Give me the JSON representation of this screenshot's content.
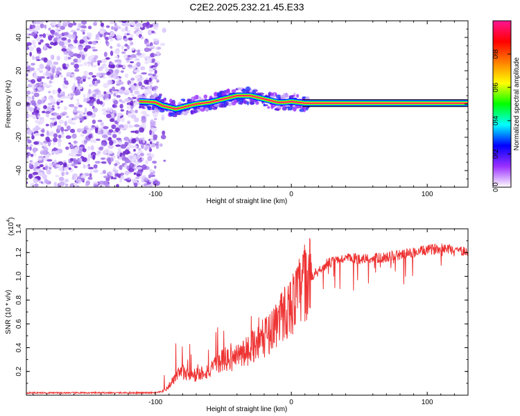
{
  "chart_data": [
    {
      "type": "heatmap",
      "title": "C2E2.2025.232.21.45.E33",
      "xlabel": "Height of straight line (km)",
      "ylabel": "Frequency (Hz)",
      "xlim": [
        -195,
        130
      ],
      "ylim": [
        -50,
        50
      ],
      "xticks": [
        -100,
        0,
        100
      ],
      "xtick_labels": [
        "-100",
        "0",
        "100"
      ],
      "yticks": [
        -40,
        -20,
        0,
        20,
        40
      ],
      "ytick_labels": [
        "-40",
        "-20",
        "0",
        "20",
        "40"
      ],
      "noise_region_x": [
        -195,
        -98
      ],
      "ridge": {
        "x": [
          -110,
          -100,
          -95,
          -90,
          -85,
          -80,
          -75,
          -70,
          -65,
          -60,
          -55,
          -50,
          -45,
          -40,
          -35,
          -30,
          -25,
          -20,
          -15,
          -10,
          -5,
          0,
          5,
          10,
          130
        ],
        "y": [
          1.5,
          1,
          -1,
          -2,
          -3,
          -2,
          -1,
          0,
          0.5,
          1,
          2,
          3,
          4,
          5,
          5,
          5,
          4,
          3,
          2,
          1,
          1,
          1.5,
          1,
          0.5,
          0.5
        ]
      },
      "colorbar": {
        "label": "Normalized spectral amplitude",
        "range": [
          0,
          1
        ],
        "ticks": [
          0.0,
          0.2,
          0.4,
          0.6,
          0.8
        ],
        "tick_labels": [
          "0.0",
          "0.2",
          "0.4",
          "0.6",
          "0.8"
        ],
        "colors": [
          "#ffffff",
          "#9b30ff",
          "#0000ff",
          "#00ffff",
          "#00ff00",
          "#ffff00",
          "#ff8000",
          "#ff0000",
          "#ff1493"
        ]
      }
    },
    {
      "type": "line",
      "title": "",
      "xlabel": "Height of straight line (km)",
      "ylabel": "SNR (10 * v/v)",
      "y_multiplier": "(x10",
      "y_multiplier_exp": "4",
      "y_multiplier_close": ")",
      "xlim": [
        -195,
        130
      ],
      "ylim": [
        0,
        1.4
      ],
      "xticks": [
        -100,
        0,
        100
      ],
      "xtick_labels": [
        "-100",
        "0",
        "100"
      ],
      "yticks": [
        0.2,
        0.4,
        0.6,
        0.8,
        1.0,
        1.2,
        1.4
      ],
      "ytick_labels": [
        "0.2",
        "0.4",
        "0.6",
        "0.8",
        "1.0",
        "1.2",
        "1.4"
      ],
      "series": [
        {
          "name": "SNR",
          "color": "#ee3333",
          "x": [
            -195,
            -180,
            -160,
            -140,
            -120,
            -100,
            -95,
            -92,
            -90,
            -85,
            -80,
            -75,
            -70,
            -65,
            -60,
            -55,
            -50,
            -45,
            -40,
            -35,
            -30,
            -25,
            -20,
            -15,
            -10,
            -5,
            0,
            5,
            10,
            15,
            20,
            25,
            30,
            35,
            40,
            45,
            50,
            60,
            70,
            80,
            90,
            100,
            110,
            120,
            130
          ],
          "y": [
            0.02,
            0.02,
            0.02,
            0.02,
            0.02,
            0.02,
            0.03,
            0.05,
            0.08,
            0.15,
            0.2,
            0.18,
            0.15,
            0.2,
            0.2,
            0.25,
            0.3,
            0.3,
            0.32,
            0.35,
            0.4,
            0.45,
            0.48,
            0.55,
            0.62,
            0.7,
            0.75,
            0.85,
            0.95,
            1.0,
            1.05,
            1.1,
            1.12,
            1.14,
            1.15,
            1.15,
            1.15,
            1.15,
            1.16,
            1.18,
            1.2,
            1.22,
            1.24,
            1.23,
            1.2
          ]
        }
      ]
    }
  ]
}
